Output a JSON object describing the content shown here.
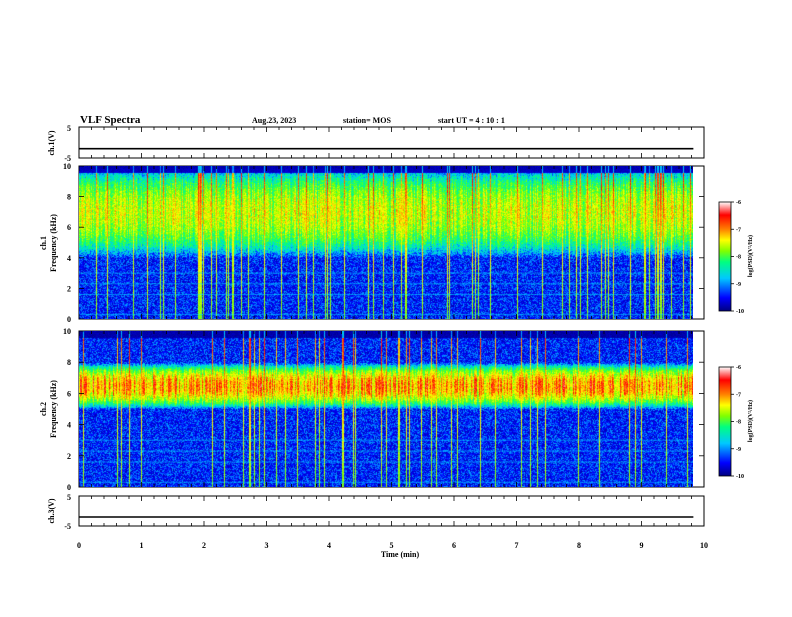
{
  "header": {
    "title": "VLF Spectra",
    "date": "Aug.23, 2023",
    "station": "station= MOS",
    "start_ut": "start  UT =   4 : 10 : 1"
  },
  "chart_data": [
    {
      "type": "line",
      "panel": "ch1-waveform",
      "ylabel": "ch.1(V)",
      "ylim": [
        -5,
        5
      ],
      "yticks": [
        "5",
        "-5"
      ],
      "series": [
        {
          "values_level": -2
        }
      ]
    },
    {
      "type": "heatmap",
      "panel": "ch1-spectrogram",
      "ylabel_line1": "ch.1",
      "ylabel_line2": "Frequency (kHz)",
      "ylim": [
        0,
        10
      ],
      "yticks": [
        "0",
        "2",
        "4",
        "6",
        "8",
        "10"
      ],
      "emission_band_khz": [
        4,
        10
      ],
      "colorbar": {
        "label": "log(PSD)(V²/Hz)",
        "ticks": [
          "-6",
          "-7",
          "-8",
          "-9",
          "-10"
        ],
        "range": [
          -10,
          -6
        ]
      }
    },
    {
      "type": "heatmap",
      "panel": "ch2-spectrogram",
      "ylabel_line1": "ch.2",
      "ylabel_line2": "Frequency (kHz)",
      "ylim": [
        0,
        10
      ],
      "yticks": [
        "0",
        "2",
        "4",
        "6",
        "8",
        "10"
      ],
      "emission_band_khz": [
        5,
        8
      ],
      "colorbar": {
        "label": "log(PSD)(V²/Hz)",
        "ticks": [
          "-6",
          "-7",
          "-8",
          "-9",
          "-10"
        ],
        "range": [
          -10,
          -6
        ]
      }
    },
    {
      "type": "line",
      "panel": "ch3-waveform",
      "ylabel": "ch.3(V)",
      "ylim": [
        -5,
        5
      ],
      "yticks": [
        "5",
        "-5"
      ],
      "series": [
        {
          "values_level": -2
        }
      ]
    }
  ],
  "x_axis": {
    "label": "Time  (min)",
    "ticks": [
      "0",
      "1",
      "2",
      "3",
      "4",
      "5",
      "6",
      "7",
      "8",
      "9",
      "10"
    ],
    "xlim": [
      0,
      10
    ],
    "data_end_min": 9.83
  },
  "colors": {
    "colormap": [
      "#000080",
      "#0000ff",
      "#00c8ff",
      "#00ff80",
      "#80ff00",
      "#ffff00",
      "#ff8000",
      "#ff0000",
      "#ffc0c0"
    ],
    "background": "#ffffff",
    "axes": "#000000"
  }
}
